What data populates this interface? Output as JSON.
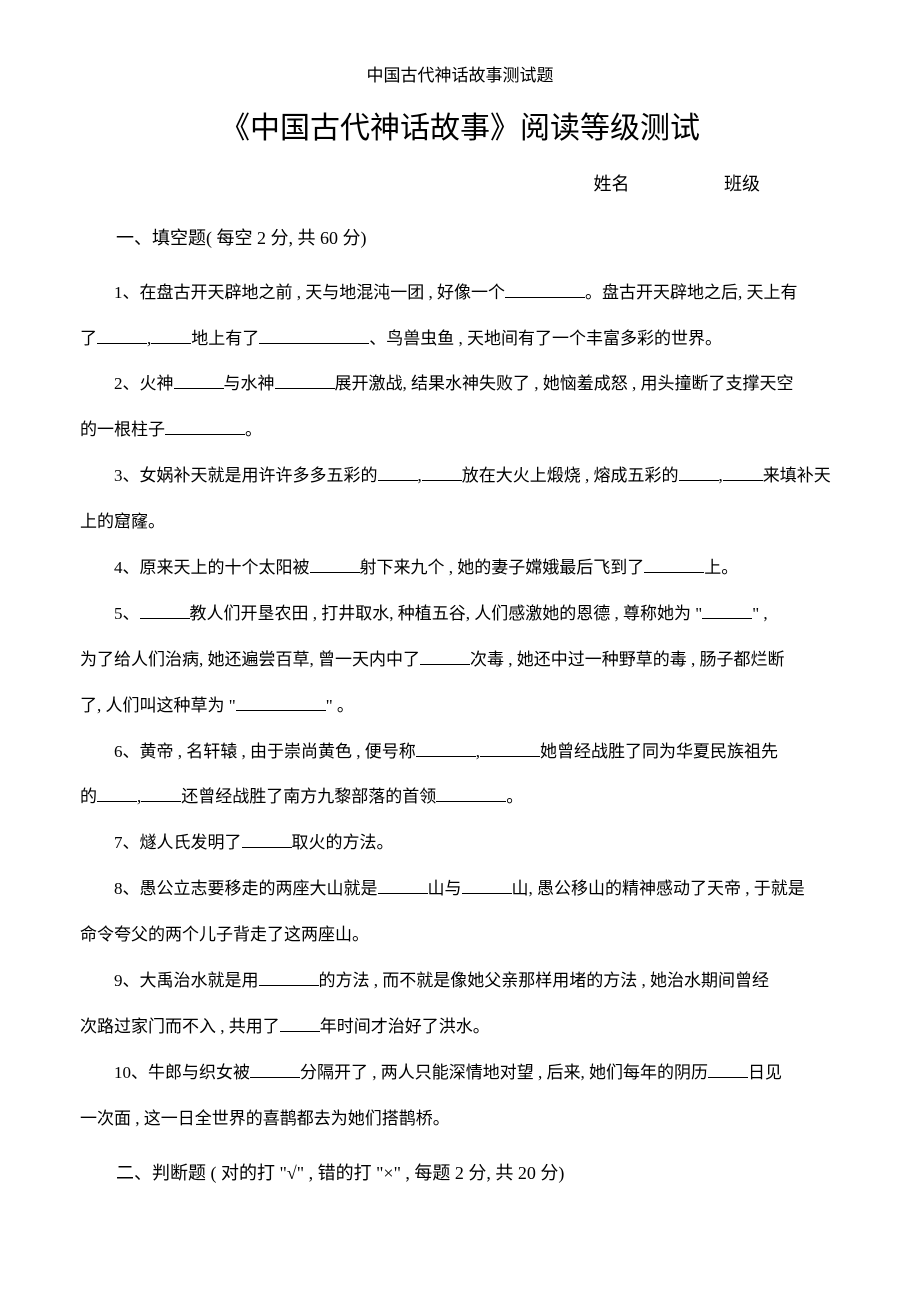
{
  "header_small": "中国古代神话故事测试题",
  "main_title": "《中国古代神话故事》阅读等级测试",
  "name_label": "姓名",
  "class_label": "班级",
  "section1_title": "一、填空题( 每空 2 分, 共 60 分)",
  "q1_a": "1、在盘古开天辟地之前 , 天与地混沌一团 , 好像一个",
  "q1_b": "。盘古开天辟地之后, 天上有",
  "q1_c": "了",
  "q1_d": ",",
  "q1_e": "地上有了",
  "q1_f": "、鸟兽虫鱼 , 天地间有了一个丰富多彩的世界。",
  "q2_a": "2、火神",
  "q2_b": "与水神",
  "q2_c": "展开激战, 结果水神失败了 , 她恼羞成怒 , 用头撞断了支撑天空",
  "q2_d": "的一根柱子",
  "q2_e": "。",
  "q3_a": "3、女娲补天就是用许许多多五彩的",
  "q3_b": ",",
  "q3_c": "放在大火上煅烧 , 熔成五彩的",
  "q3_d": ",",
  "q3_e": "来填补天",
  "q3_f": "上的窟窿。",
  "q4_a": "4、原来天上的十个太阳被",
  "q4_b": "射下来九个 , 她的妻子嫦娥最后飞到了",
  "q4_c": "上。",
  "q5_a": "5、",
  "q5_b": "教人们开垦农田 , 打井取水, 种植五谷, 人们感激她的恩德 , 尊称她为 \"",
  "q5_c": "\" ,",
  "q5_d": "为了给人们治病, 她还遍尝百草, 曾一天内中了",
  "q5_e": "次毒 , 她还中过一种野草的毒 , 肠子都烂断",
  "q5_f": "了, 人们叫这种草为 \"",
  "q5_g": "\" 。",
  "q6_a": "6、黄帝 , 名轩辕 , 由于崇尚黄色 , 便号称",
  "q6_b": ",",
  "q6_c": "她曾经战胜了同为华夏民族祖先",
  "q6_d": "的",
  "q6_e": ",",
  "q6_f": "还曾经战胜了南方九黎部落的首领",
  "q6_g": "。",
  "q7_a": "7、燧人氏发明了",
  "q7_b": "取火的方法。",
  "q8_a": "8、愚公立志要移走的两座大山就是",
  "q8_b": "山与",
  "q8_c": "山, 愚公移山的精神感动了天帝 , 于就是",
  "q8_d": "命令夸父的两个儿子背走了这两座山。",
  "q9_a": "9、大禹治水就是用",
  "q9_b": "的方法 , 而不就是像她父亲那样用堵的方法 , 她治水期间曾经",
  "q9_c": "次路过家门而不入 , 共用了",
  "q9_d": "年时间才治好了洪水。",
  "q10_a": "10、牛郎与织女被",
  "q10_b": "分隔开了 , 两人只能深情地对望 , 后来, 她们每年的阴历",
  "q10_c": "日见",
  "q10_d": "一次面 , 这一日全世界的喜鹊都去为她们搭鹊桥。",
  "section2_title": "二、判断题 ( 对的打 \"√\" , 错的打 \"×\" , 每题 2 分, 共 20 分)"
}
